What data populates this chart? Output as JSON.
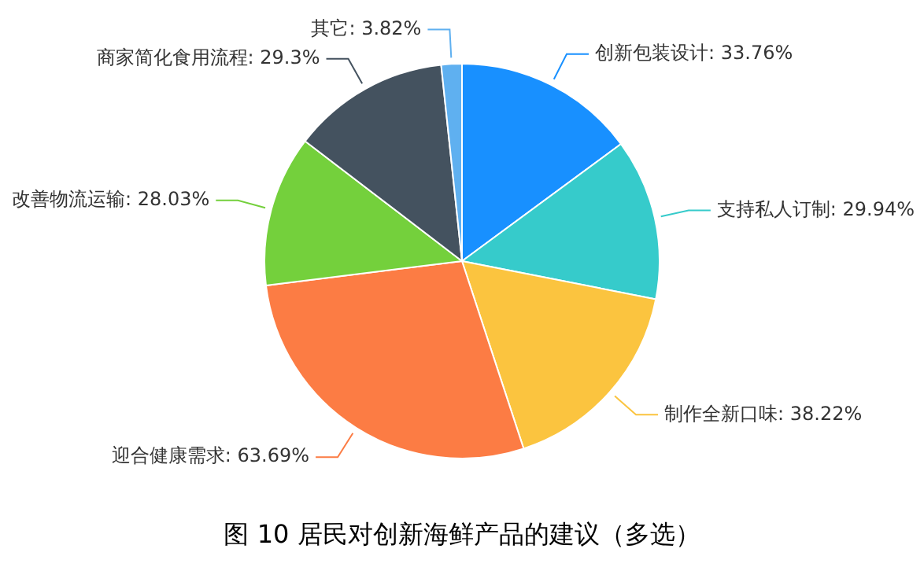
{
  "chart_data": {
    "type": "pie",
    "title": "图 10 居民对创新海鲜产品的建议（多选）",
    "categories": [
      "创新包装设计",
      "支持私人订制",
      "制作全新口味",
      "迎合健康需求",
      "改善物流运输",
      "商家简化食用流程",
      "其它"
    ],
    "values": [
      33.76,
      29.94,
      38.22,
      63.69,
      28.03,
      29.3,
      3.82
    ],
    "value_labels": [
      "33.76%",
      "29.94%",
      "38.22%",
      "63.69%",
      "28.03%",
      "29.3%",
      "3.82%"
    ],
    "colors": [
      "#1890ff",
      "#36cbcb",
      "#fbc43f",
      "#fc7c44",
      "#74d03c",
      "#44525f",
      "#5fb0f0"
    ],
    "legend": false
  }
}
